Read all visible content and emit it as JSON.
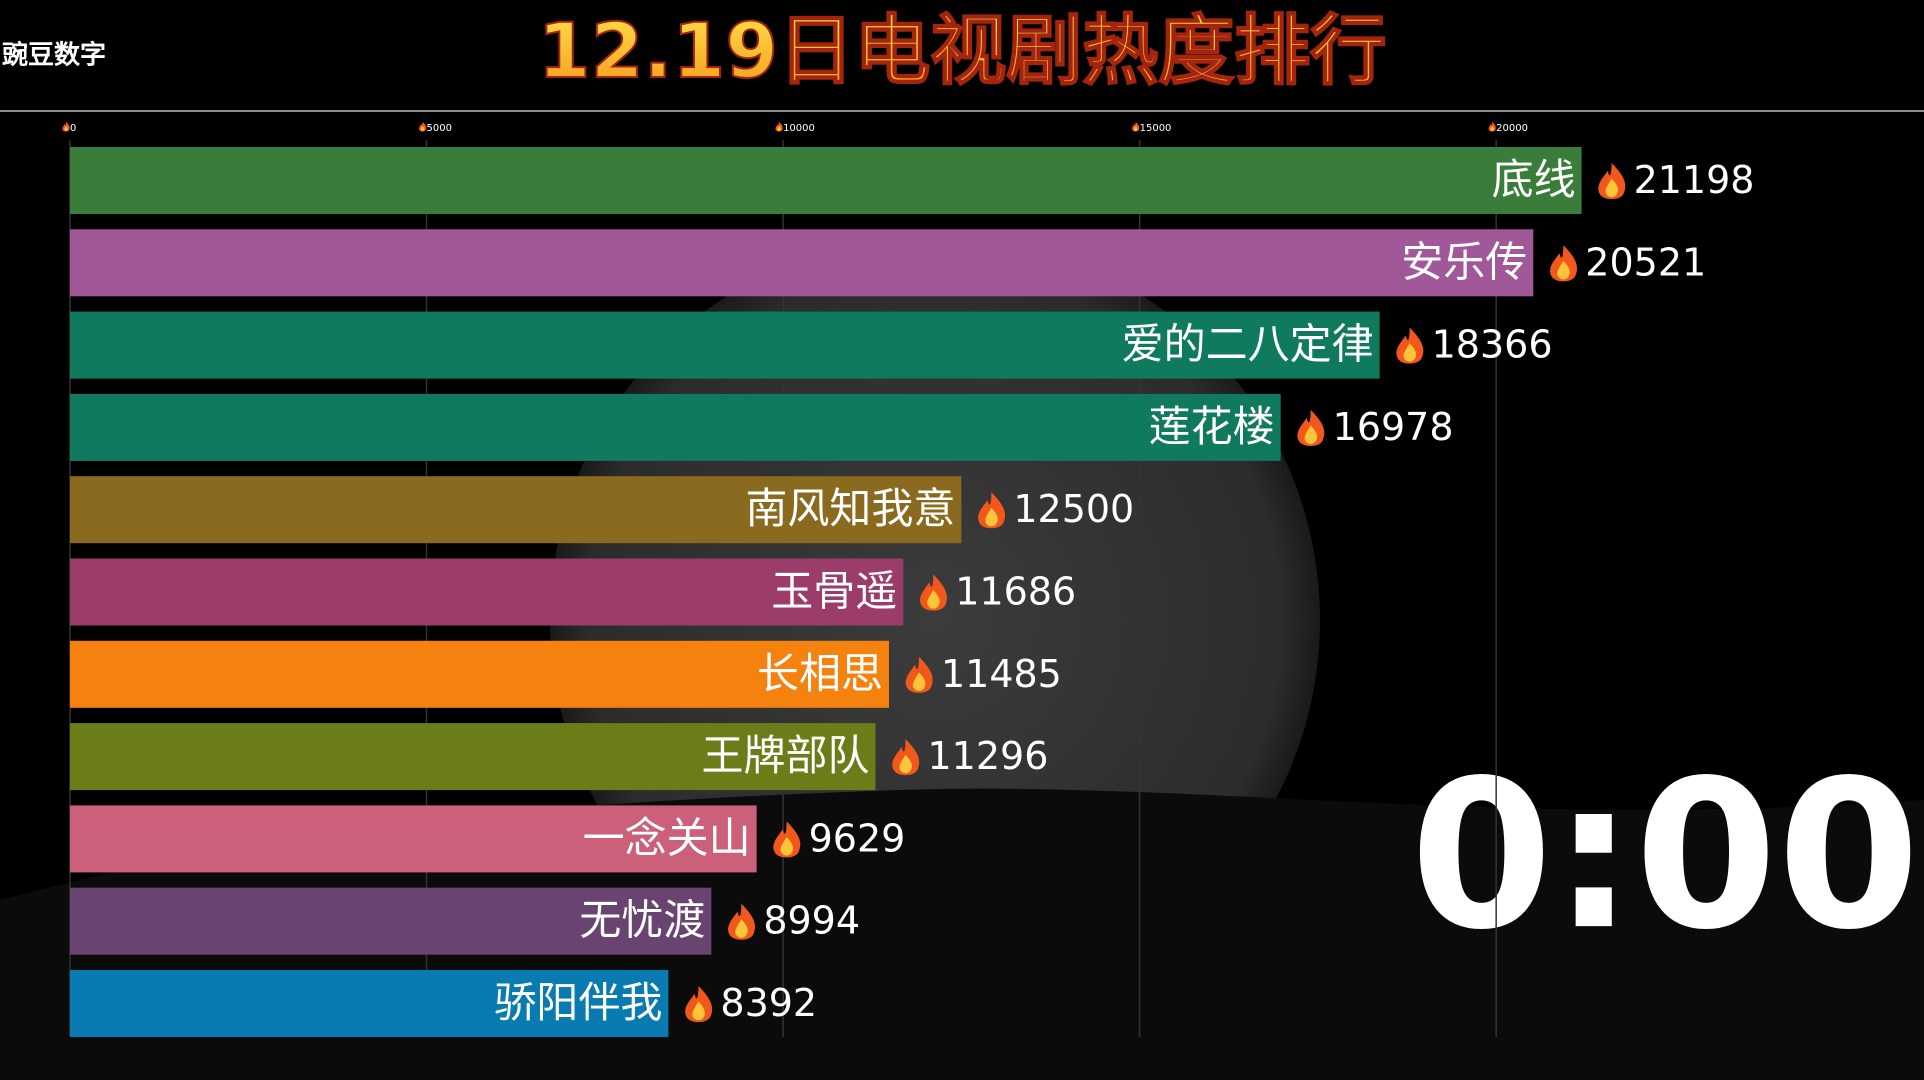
{
  "watermark": "豌豆数字",
  "timer": "0:00",
  "chart_data": {
    "type": "bar",
    "orientation": "horizontal",
    "title": "12.19日电视剧热度排行",
    "categories": [
      "底线",
      "安乐传",
      "爱的二八定律",
      "莲花楼",
      "南风知我意",
      "玉骨遥",
      "长相思",
      "王牌部队",
      "一念关山",
      "无忧渡",
      "骄阳伴我"
    ],
    "values": [
      21198,
      20521,
      18366,
      16978,
      12500,
      11686,
      11485,
      11296,
      9629,
      8994,
      8392
    ],
    "colors": [
      "#3a7d3a",
      "#a05898",
      "#107a5f",
      "#107a5f",
      "#8a6a1e",
      "#9b3c6a",
      "#f5820f",
      "#6b7d18",
      "#cc5f7a",
      "#6a4470",
      "#0a7bb0"
    ],
    "xlim": [
      0,
      26000
    ],
    "xticks": [
      0,
      5000,
      10000,
      15000,
      20000
    ],
    "grid": true
  }
}
